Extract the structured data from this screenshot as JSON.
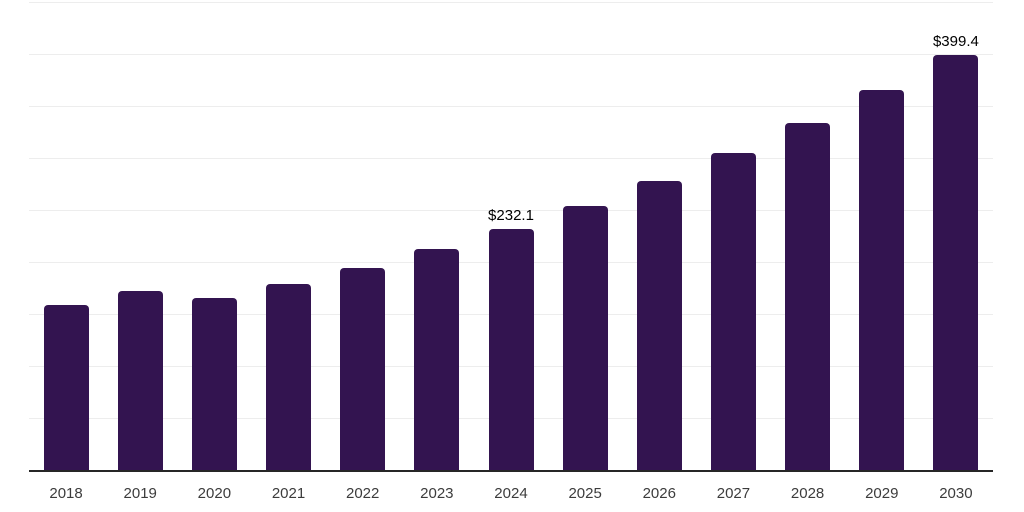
{
  "chart_data": {
    "type": "bar",
    "categories": [
      "2018",
      "2019",
      "2020",
      "2021",
      "2022",
      "2023",
      "2024",
      "2025",
      "2026",
      "2027",
      "2028",
      "2029",
      "2030"
    ],
    "values": [
      159.0,
      171.8,
      165.4,
      178.8,
      193.9,
      212.2,
      232.1,
      254.1,
      278.2,
      304.6,
      333.4,
      365.0,
      399.4
    ],
    "value_labels": [
      "",
      "",
      "",
      "",
      "",
      "",
      "$232.1",
      "",
      "",
      "",
      "",
      "",
      "$399.4"
    ],
    "ylim": [
      0,
      450
    ],
    "gridline_step": 50,
    "grid": "horizontal",
    "legend": "none",
    "xlabel": "",
    "ylabel": "",
    "colors": {
      "bar": "#331450",
      "gridline": "#ededed",
      "axis_line": "#262626",
      "tick_label": "#3c3c3c",
      "value_label": "#000000",
      "background": "#ffffff"
    }
  }
}
